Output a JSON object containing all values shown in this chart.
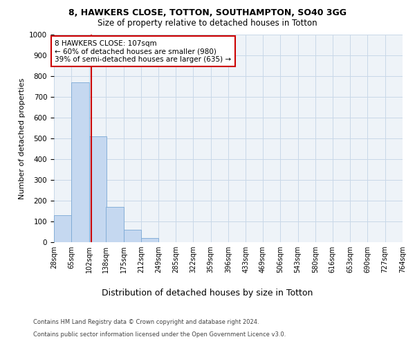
{
  "title1": "8, HAWKERS CLOSE, TOTTON, SOUTHAMPTON, SO40 3GG",
  "title2": "Size of property relative to detached houses in Totton",
  "xlabel": "Distribution of detached houses by size in Totton",
  "ylabel": "Number of detached properties",
  "footer1": "Contains HM Land Registry data © Crown copyright and database right 2024.",
  "footer2": "Contains public sector information licensed under the Open Government Licence v3.0.",
  "property_label": "8 HAWKERS CLOSE: 107sqm",
  "annotation_line1": "← 60% of detached houses are smaller (980)",
  "annotation_line2": "39% of semi-detached houses are larger (635) →",
  "bin_edges": [
    28,
    65,
    102,
    138,
    175,
    212,
    249,
    285,
    322,
    359,
    396,
    433,
    469,
    506,
    543,
    580,
    616,
    653,
    690,
    727,
    764
  ],
  "bin_labels": [
    "28sqm",
    "65sqm",
    "102sqm",
    "138sqm",
    "175sqm",
    "212sqm",
    "249sqm",
    "285sqm",
    "322sqm",
    "359sqm",
    "396sqm",
    "433sqm",
    "469sqm",
    "506sqm",
    "543sqm",
    "580sqm",
    "616sqm",
    "653sqm",
    "690sqm",
    "727sqm",
    "764sqm"
  ],
  "bar_heights": [
    130,
    770,
    510,
    170,
    60,
    20,
    0,
    0,
    0,
    0,
    0,
    0,
    0,
    0,
    0,
    0,
    0,
    0,
    0,
    0
  ],
  "bar_color": "#c5d8f0",
  "bar_edge_color": "#7aa8d4",
  "vline_x": 107,
  "vline_color": "#cc0000",
  "ylim": [
    0,
    1000
  ],
  "yticks": [
    0,
    100,
    200,
    300,
    400,
    500,
    600,
    700,
    800,
    900,
    1000
  ],
  "annotation_box_color": "#cc0000",
  "annotation_box_facecolor": "white",
  "grid_color": "#c8d8e8",
  "background_color": "#eef3f8"
}
